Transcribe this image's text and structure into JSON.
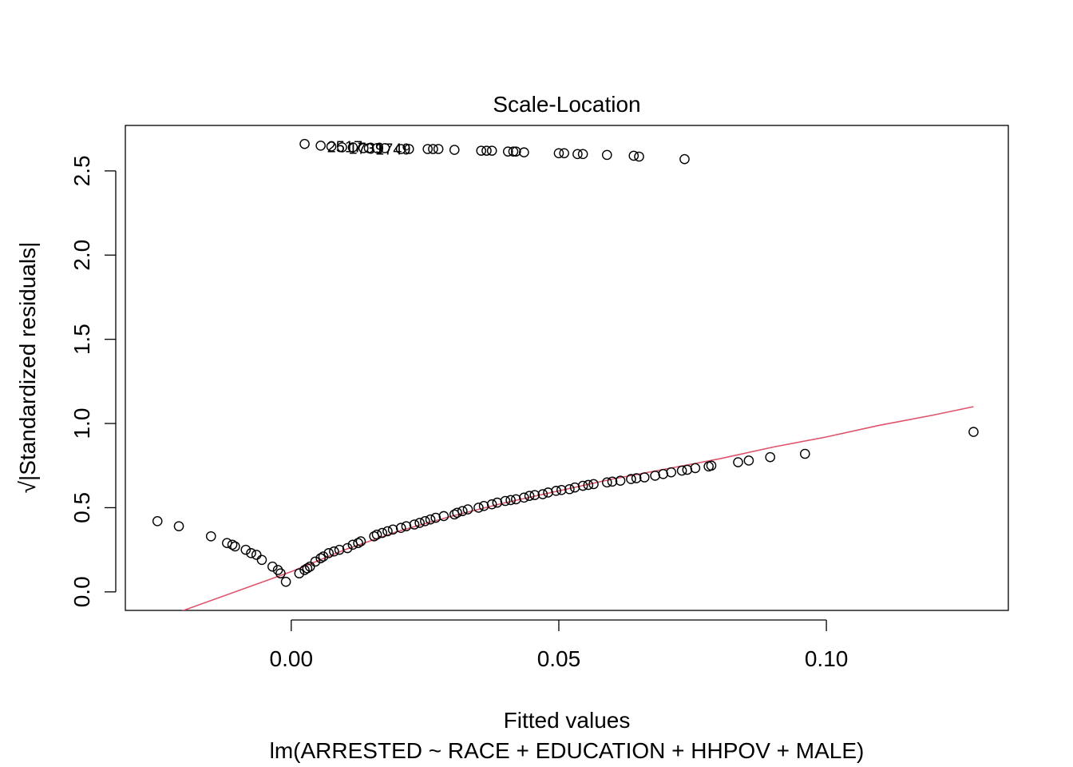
{
  "chart_data": {
    "type": "scatter",
    "title": "Scale-Location",
    "xlabel": "Fitted values",
    "subtitle": "lm(ARRESTED ~ RACE + EDUCATION + HHPOV + MALE)",
    "ylabel": "√|Standardized residuals|",
    "xlim": [
      -0.031,
      0.134
    ],
    "ylim": [
      -0.11,
      2.77
    ],
    "x_ticks": [
      0.0,
      0.05,
      0.1
    ],
    "x_tick_labels": [
      "0.00",
      "0.05",
      "0.10"
    ],
    "y_ticks": [
      0.0,
      0.5,
      1.0,
      1.5,
      2.0,
      2.5
    ],
    "y_tick_labels": [
      "0.0",
      "0.5",
      "1.0",
      "1.5",
      "2.0",
      "2.5"
    ],
    "grid": false,
    "colors": {
      "points": "#000000",
      "smoother": "#DF536B",
      "frame": "#000000"
    },
    "points": [
      {
        "x": -0.025,
        "y": 0.42
      },
      {
        "x": -0.021,
        "y": 0.39
      },
      {
        "x": -0.015,
        "y": 0.33
      },
      {
        "x": -0.012,
        "y": 0.29
      },
      {
        "x": -0.011,
        "y": 0.28
      },
      {
        "x": -0.0105,
        "y": 0.27
      },
      {
        "x": -0.0085,
        "y": 0.25
      },
      {
        "x": -0.0075,
        "y": 0.23
      },
      {
        "x": -0.0065,
        "y": 0.22
      },
      {
        "x": -0.0055,
        "y": 0.19
      },
      {
        "x": -0.0035,
        "y": 0.15
      },
      {
        "x": -0.0025,
        "y": 0.13
      },
      {
        "x": -0.002,
        "y": 0.11
      },
      {
        "x": -0.001,
        "y": 0.06
      },
      {
        "x": 0.0015,
        "y": 0.11
      },
      {
        "x": 0.0025,
        "y": 0.13
      },
      {
        "x": 0.003,
        "y": 0.14
      },
      {
        "x": 0.0035,
        "y": 0.15
      },
      {
        "x": 0.0045,
        "y": 0.18
      },
      {
        "x": 0.0055,
        "y": 0.2
      },
      {
        "x": 0.006,
        "y": 0.21
      },
      {
        "x": 0.007,
        "y": 0.23
      },
      {
        "x": 0.008,
        "y": 0.24
      },
      {
        "x": 0.009,
        "y": 0.25
      },
      {
        "x": 0.0105,
        "y": 0.26
      },
      {
        "x": 0.0115,
        "y": 0.28
      },
      {
        "x": 0.0125,
        "y": 0.29
      },
      {
        "x": 0.013,
        "y": 0.3
      },
      {
        "x": 0.0155,
        "y": 0.33
      },
      {
        "x": 0.016,
        "y": 0.34
      },
      {
        "x": 0.017,
        "y": 0.35
      },
      {
        "x": 0.018,
        "y": 0.36
      },
      {
        "x": 0.019,
        "y": 0.37
      },
      {
        "x": 0.0205,
        "y": 0.38
      },
      {
        "x": 0.0215,
        "y": 0.39
      },
      {
        "x": 0.023,
        "y": 0.4
      },
      {
        "x": 0.024,
        "y": 0.41
      },
      {
        "x": 0.025,
        "y": 0.42
      },
      {
        "x": 0.026,
        "y": 0.43
      },
      {
        "x": 0.027,
        "y": 0.44
      },
      {
        "x": 0.0285,
        "y": 0.45
      },
      {
        "x": 0.0305,
        "y": 0.46
      },
      {
        "x": 0.031,
        "y": 0.47
      },
      {
        "x": 0.032,
        "y": 0.48
      },
      {
        "x": 0.033,
        "y": 0.49
      },
      {
        "x": 0.035,
        "y": 0.5
      },
      {
        "x": 0.036,
        "y": 0.51
      },
      {
        "x": 0.0375,
        "y": 0.52
      },
      {
        "x": 0.0385,
        "y": 0.53
      },
      {
        "x": 0.04,
        "y": 0.54
      },
      {
        "x": 0.041,
        "y": 0.545
      },
      {
        "x": 0.042,
        "y": 0.55
      },
      {
        "x": 0.0435,
        "y": 0.56
      },
      {
        "x": 0.0445,
        "y": 0.57
      },
      {
        "x": 0.0455,
        "y": 0.575
      },
      {
        "x": 0.047,
        "y": 0.58
      },
      {
        "x": 0.048,
        "y": 0.59
      },
      {
        "x": 0.0495,
        "y": 0.6
      },
      {
        "x": 0.0505,
        "y": 0.605
      },
      {
        "x": 0.052,
        "y": 0.61
      },
      {
        "x": 0.053,
        "y": 0.62
      },
      {
        "x": 0.0545,
        "y": 0.63
      },
      {
        "x": 0.0555,
        "y": 0.635
      },
      {
        "x": 0.0565,
        "y": 0.64
      },
      {
        "x": 0.059,
        "y": 0.65
      },
      {
        "x": 0.06,
        "y": 0.655
      },
      {
        "x": 0.0615,
        "y": 0.66
      },
      {
        "x": 0.0635,
        "y": 0.67
      },
      {
        "x": 0.0645,
        "y": 0.675
      },
      {
        "x": 0.066,
        "y": 0.68
      },
      {
        "x": 0.068,
        "y": 0.69
      },
      {
        "x": 0.0695,
        "y": 0.7
      },
      {
        "x": 0.071,
        "y": 0.71
      },
      {
        "x": 0.073,
        "y": 0.72
      },
      {
        "x": 0.074,
        "y": 0.725
      },
      {
        "x": 0.0755,
        "y": 0.735
      },
      {
        "x": 0.078,
        "y": 0.745
      },
      {
        "x": 0.0785,
        "y": 0.75
      },
      {
        "x": 0.0835,
        "y": 0.77
      },
      {
        "x": 0.0855,
        "y": 0.78
      },
      {
        "x": 0.0895,
        "y": 0.8
      },
      {
        "x": 0.096,
        "y": 0.82
      },
      {
        "x": 0.1275,
        "y": 0.95
      },
      {
        "x": 0.0025,
        "y": 2.66
      },
      {
        "x": 0.0055,
        "y": 2.65
      },
      {
        "x": 0.0075,
        "y": 2.645
      },
      {
        "x": 0.0095,
        "y": 2.64
      },
      {
        "x": 0.0115,
        "y": 2.64
      },
      {
        "x": 0.0135,
        "y": 2.635
      },
      {
        "x": 0.0145,
        "y": 2.635
      },
      {
        "x": 0.016,
        "y": 2.635
      },
      {
        "x": 0.0175,
        "y": 2.635
      },
      {
        "x": 0.0205,
        "y": 2.63
      },
      {
        "x": 0.022,
        "y": 2.63
      },
      {
        "x": 0.0255,
        "y": 2.63
      },
      {
        "x": 0.0265,
        "y": 2.63
      },
      {
        "x": 0.0275,
        "y": 2.63
      },
      {
        "x": 0.0305,
        "y": 2.625
      },
      {
        "x": 0.0355,
        "y": 2.62
      },
      {
        "x": 0.0365,
        "y": 2.62
      },
      {
        "x": 0.0375,
        "y": 2.62
      },
      {
        "x": 0.0405,
        "y": 2.615
      },
      {
        "x": 0.0415,
        "y": 2.615
      },
      {
        "x": 0.042,
        "y": 2.615
      },
      {
        "x": 0.0435,
        "y": 2.61
      },
      {
        "x": 0.05,
        "y": 2.605
      },
      {
        "x": 0.051,
        "y": 2.605
      },
      {
        "x": 0.0535,
        "y": 2.6
      },
      {
        "x": 0.0545,
        "y": 2.6
      },
      {
        "x": 0.059,
        "y": 2.595
      },
      {
        "x": 0.064,
        "y": 2.59
      },
      {
        "x": 0.065,
        "y": 2.585
      },
      {
        "x": 0.0735,
        "y": 2.57
      }
    ],
    "smoother": [
      {
        "x": -0.021,
        "y": -0.12
      },
      {
        "x": 0.0,
        "y": 0.12
      },
      {
        "x": 0.01,
        "y": 0.25
      },
      {
        "x": 0.02,
        "y": 0.36
      },
      {
        "x": 0.03,
        "y": 0.45
      },
      {
        "x": 0.04,
        "y": 0.53
      },
      {
        "x": 0.05,
        "y": 0.6
      },
      {
        "x": 0.06,
        "y": 0.67
      },
      {
        "x": 0.07,
        "y": 0.73
      },
      {
        "x": 0.08,
        "y": 0.79
      },
      {
        "x": 0.09,
        "y": 0.86
      },
      {
        "x": 0.1,
        "y": 0.92
      },
      {
        "x": 0.11,
        "y": 0.99
      },
      {
        "x": 0.12,
        "y": 1.05
      },
      {
        "x": 0.1275,
        "y": 1.1
      }
    ],
    "labels": [
      {
        "text": "2517",
        "x": 0.0055,
        "y": 2.65
      },
      {
        "text": "1739",
        "x": 0.0095,
        "y": 2.64
      },
      {
        "text": "1749",
        "x": 0.0145,
        "y": 2.635
      }
    ]
  }
}
